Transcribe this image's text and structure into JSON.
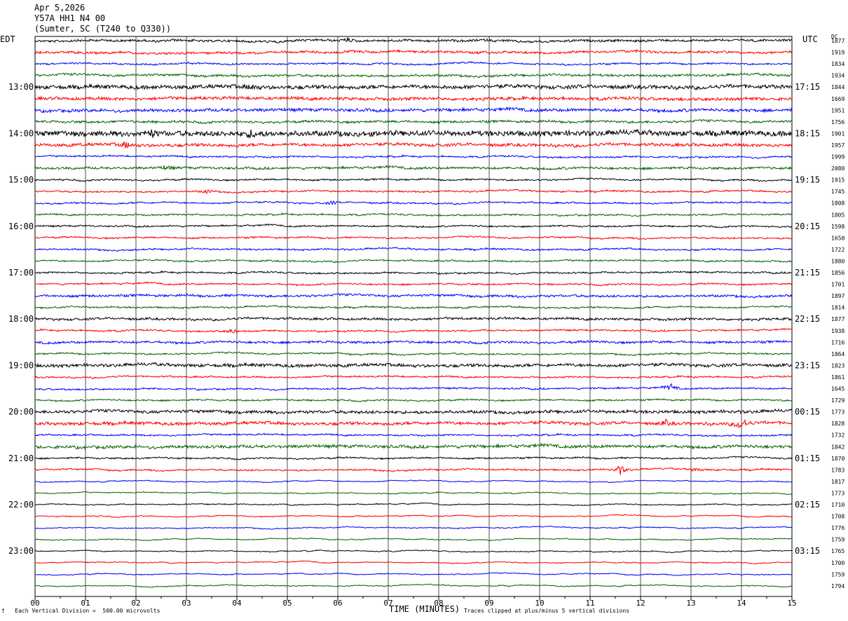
{
  "header": {
    "date": "Apr 5,2026",
    "station": "Y57A HH1 N4 00",
    "location": "(Sumter, SC (T240 to Q330))"
  },
  "left_timezone": "EDT",
  "right_timezone": "UTC",
  "dc_label": "DC",
  "footer": {
    "scale": "Each Vertical Division =  500.00 microvolts",
    "clip": "Traces clipped at plus/minus 5 vertical divisions",
    "mark": "†"
  },
  "colors": {
    "cycle": [
      "#000000",
      "#ff0000",
      "#0000ff",
      "#006400"
    ],
    "grid": "#000000"
  },
  "chart_data": {
    "type": "line",
    "title": "Y57A HH1 N4 00",
    "xlabel": "TIME (MINUTES)",
    "ylabel": "",
    "xlim": [
      0,
      15
    ],
    "x_ticks": [
      "00",
      "01",
      "02",
      "03",
      "04",
      "05",
      "06",
      "07",
      "08",
      "09",
      "10",
      "11",
      "12",
      "13",
      "14",
      "15"
    ],
    "left_time_labels": [
      "13:00",
      "14:00",
      "15:00",
      "16:00",
      "17:00",
      "18:00",
      "19:00",
      "20:00",
      "21:00",
      "22:00",
      "23:00"
    ],
    "right_time_labels": [
      "17:15",
      "18:15",
      "19:15",
      "20:15",
      "21:15",
      "22:15",
      "23:15",
      "00:15",
      "01:15",
      "02:15",
      "03:15"
    ],
    "dc_offsets": [
      1877,
      1919,
      1834,
      1934,
      1844,
      1669,
      1951,
      1756,
      1901,
      1957,
      1999,
      2080,
      1915,
      1745,
      1808,
      1805,
      1598,
      1650,
      1722,
      1880,
      1856,
      1701,
      1897,
      1814,
      1877,
      1938,
      1716,
      1864,
      1823,
      1861,
      1645,
      1729,
      1773,
      1828,
      1732,
      1842,
      1870,
      1783,
      1817,
      1773,
      1710,
      1708,
      1776,
      1759,
      1765,
      1700,
      1759,
      1794
    ],
    "amplitude": [
      3,
      3,
      2,
      3,
      5,
      4,
      4,
      3,
      7,
      4,
      2,
      3,
      2,
      2,
      2,
      2,
      2,
      2,
      2,
      2,
      2,
      2,
      3,
      2,
      3,
      2,
      3,
      2,
      4,
      2,
      2,
      2,
      4,
      4,
      2,
      4,
      2,
      2,
      1,
      1,
      1,
      1,
      1,
      1,
      1,
      1,
      1,
      1
    ],
    "events": [
      {
        "trace": 0,
        "minute": 6.2,
        "amp": 4
      },
      {
        "trace": 4,
        "minute": 4.3,
        "amp": 6
      },
      {
        "trace": 8,
        "minute": 2.3,
        "amp": 8
      },
      {
        "trace": 8,
        "minute": 4.3,
        "amp": 9
      },
      {
        "trace": 9,
        "minute": 1.8,
        "amp": 8
      },
      {
        "trace": 11,
        "minute": 2.6,
        "amp": 6
      },
      {
        "trace": 13,
        "minute": 3.4,
        "amp": 5
      },
      {
        "trace": 14,
        "minute": 5.9,
        "amp": 5
      },
      {
        "trace": 25,
        "minute": 3.9,
        "amp": 6
      },
      {
        "trace": 30,
        "minute": 12.6,
        "amp": 10
      },
      {
        "trace": 33,
        "minute": 14.0,
        "amp": 18
      },
      {
        "trace": 33,
        "minute": 12.5,
        "amp": 7
      },
      {
        "trace": 37,
        "minute": 11.6,
        "amp": 14
      },
      {
        "trace": 37,
        "minute": 13.1,
        "amp": 5
      }
    ]
  }
}
